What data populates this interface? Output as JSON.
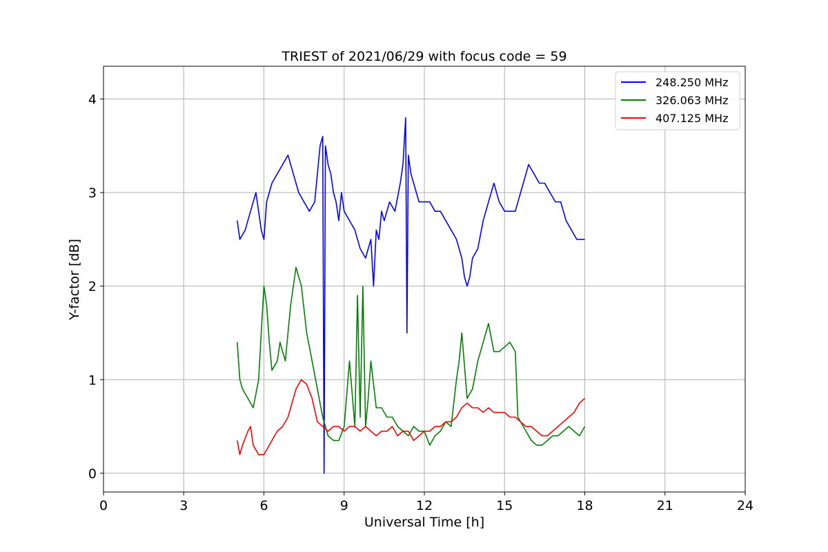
{
  "chart_data": {
    "type": "line",
    "title": "TRIEST of 2021/06/29 with focus code = 59",
    "xlabel": "Universal Time [h]",
    "ylabel": "Y-factor [dB]",
    "xlim": [
      0,
      24
    ],
    "ylim": [
      -0.2,
      4.35
    ],
    "xticks": [
      0,
      3,
      6,
      9,
      12,
      15,
      18,
      21,
      24
    ],
    "yticks": [
      0,
      1,
      2,
      3,
      4
    ],
    "grid": true,
    "legend_position": "top-right",
    "series": [
      {
        "name": "248.250 MHz",
        "color": "#0000ff",
        "x": [
          5.0,
          5.1,
          5.3,
          5.5,
          5.7,
          5.8,
          5.9,
          6.0,
          6.1,
          6.3,
          6.5,
          6.7,
          6.9,
          7.1,
          7.3,
          7.5,
          7.7,
          7.9,
          8.0,
          8.1,
          8.2,
          8.25,
          8.3,
          8.4,
          8.5,
          8.6,
          8.7,
          8.8,
          8.9,
          9.0,
          9.2,
          9.4,
          9.6,
          9.8,
          10.0,
          10.1,
          10.2,
          10.3,
          10.4,
          10.5,
          10.7,
          10.9,
          11.1,
          11.2,
          11.3,
          11.35,
          11.4,
          11.5,
          11.6,
          11.8,
          12.0,
          12.2,
          12.4,
          12.6,
          12.8,
          13.0,
          13.2,
          13.4,
          13.5,
          13.6,
          13.7,
          13.8,
          14.0,
          14.2,
          14.4,
          14.6,
          14.8,
          15.0,
          15.2,
          15.4,
          15.6,
          15.8,
          15.9,
          16.1,
          16.3,
          16.5,
          16.7,
          16.9,
          17.1,
          17.3,
          17.5,
          17.7,
          18.0
        ],
        "y": [
          2.7,
          2.5,
          2.6,
          2.8,
          3.0,
          2.8,
          2.6,
          2.5,
          2.9,
          3.1,
          3.2,
          3.3,
          3.4,
          3.2,
          3.0,
          2.9,
          2.8,
          2.9,
          3.2,
          3.5,
          3.6,
          0.0,
          3.5,
          3.3,
          3.2,
          3.0,
          2.9,
          2.7,
          3.0,
          2.8,
          2.7,
          2.6,
          2.4,
          2.3,
          2.5,
          2.0,
          2.6,
          2.5,
          2.8,
          2.7,
          2.9,
          2.8,
          3.1,
          3.3,
          3.8,
          1.5,
          3.4,
          3.2,
          3.1,
          2.9,
          2.9,
          2.9,
          2.8,
          2.8,
          2.7,
          2.6,
          2.5,
          2.3,
          2.1,
          2.0,
          2.1,
          2.3,
          2.4,
          2.7,
          2.9,
          3.1,
          2.9,
          2.8,
          2.8,
          2.8,
          3.0,
          3.2,
          3.3,
          3.2,
          3.1,
          3.1,
          3.0,
          2.9,
          2.9,
          2.7,
          2.6,
          2.5,
          2.5
        ]
      },
      {
        "name": "326.063 MHz",
        "color": "#008000",
        "x": [
          5.0,
          5.1,
          5.2,
          5.4,
          5.6,
          5.8,
          5.9,
          6.0,
          6.1,
          6.2,
          6.3,
          6.5,
          6.6,
          6.8,
          7.0,
          7.2,
          7.4,
          7.6,
          7.8,
          8.0,
          8.2,
          8.4,
          8.6,
          8.8,
          9.0,
          9.2,
          9.4,
          9.5,
          9.6,
          9.7,
          9.8,
          9.9,
          10.0,
          10.2,
          10.4,
          10.6,
          10.8,
          11.0,
          11.2,
          11.4,
          11.6,
          11.8,
          12.0,
          12.2,
          12.4,
          12.6,
          12.8,
          13.0,
          13.2,
          13.3,
          13.4,
          13.6,
          13.8,
          14.0,
          14.2,
          14.4,
          14.6,
          14.8,
          15.0,
          15.2,
          15.4,
          15.5,
          15.6,
          15.8,
          16.0,
          16.2,
          16.4,
          16.6,
          16.8,
          17.0,
          17.2,
          17.4,
          17.6,
          17.8,
          18.0
        ],
        "y": [
          1.4,
          1.0,
          0.9,
          0.8,
          0.7,
          1.0,
          1.5,
          2.0,
          1.8,
          1.4,
          1.1,
          1.2,
          1.4,
          1.2,
          1.8,
          2.2,
          2.0,
          1.5,
          1.2,
          0.9,
          0.6,
          0.4,
          0.35,
          0.35,
          0.5,
          1.2,
          0.5,
          1.9,
          0.6,
          2.0,
          0.5,
          0.8,
          1.2,
          0.7,
          0.7,
          0.6,
          0.6,
          0.5,
          0.45,
          0.4,
          0.5,
          0.45,
          0.45,
          0.3,
          0.4,
          0.45,
          0.55,
          0.5,
          1.0,
          1.2,
          1.5,
          0.8,
          0.9,
          1.2,
          1.4,
          1.6,
          1.3,
          1.3,
          1.35,
          1.4,
          1.3,
          0.6,
          0.55,
          0.45,
          0.35,
          0.3,
          0.3,
          0.35,
          0.4,
          0.4,
          0.45,
          0.5,
          0.45,
          0.4,
          0.5
        ]
      },
      {
        "name": "407.125 MHz",
        "color": "#ff0000",
        "x": [
          5.0,
          5.1,
          5.2,
          5.4,
          5.5,
          5.6,
          5.8,
          6.0,
          6.1,
          6.3,
          6.5,
          6.7,
          6.9,
          7.0,
          7.2,
          7.4,
          7.6,
          7.8,
          8.0,
          8.2,
          8.4,
          8.6,
          8.8,
          9.0,
          9.2,
          9.4,
          9.6,
          9.8,
          10.0,
          10.2,
          10.4,
          10.6,
          10.8,
          11.0,
          11.2,
          11.4,
          11.6,
          11.8,
          12.0,
          12.2,
          12.4,
          12.6,
          12.8,
          13.0,
          13.2,
          13.4,
          13.6,
          13.8,
          14.0,
          14.2,
          14.4,
          14.6,
          14.8,
          15.0,
          15.2,
          15.4,
          15.6,
          15.8,
          16.0,
          16.2,
          16.4,
          16.6,
          16.8,
          17.0,
          17.2,
          17.4,
          17.6,
          17.8,
          18.0
        ],
        "y": [
          0.35,
          0.2,
          0.3,
          0.45,
          0.5,
          0.3,
          0.2,
          0.2,
          0.25,
          0.35,
          0.45,
          0.5,
          0.6,
          0.7,
          0.9,
          1.0,
          0.95,
          0.8,
          0.55,
          0.5,
          0.45,
          0.5,
          0.5,
          0.45,
          0.5,
          0.5,
          0.45,
          0.5,
          0.45,
          0.4,
          0.45,
          0.45,
          0.5,
          0.4,
          0.45,
          0.45,
          0.35,
          0.4,
          0.45,
          0.45,
          0.5,
          0.5,
          0.55,
          0.55,
          0.6,
          0.7,
          0.75,
          0.7,
          0.7,
          0.65,
          0.7,
          0.65,
          0.65,
          0.65,
          0.6,
          0.6,
          0.55,
          0.5,
          0.5,
          0.45,
          0.4,
          0.4,
          0.45,
          0.5,
          0.55,
          0.6,
          0.65,
          0.75,
          0.8
        ]
      }
    ]
  }
}
